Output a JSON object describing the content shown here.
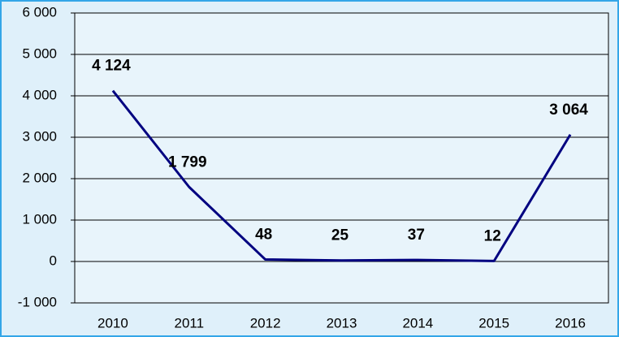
{
  "chart_data": {
    "type": "line",
    "categories": [
      "2010",
      "2011",
      "2012",
      "2013",
      "2014",
      "2015",
      "2016"
    ],
    "values": [
      4124,
      1799,
      48,
      25,
      37,
      12,
      3064
    ],
    "value_labels": [
      "4 124",
      "1 799",
      "48",
      "25",
      "37",
      "12",
      "3 064"
    ],
    "color": "#000080",
    "ylim": [
      -1000,
      6000
    ],
    "yticks": [
      {
        "value": -1000,
        "label": "-1 000"
      },
      0,
      {
        "value": 1000,
        "label": "1 000"
      },
      {
        "value": 2000,
        "label": "2 000"
      },
      {
        "value": 3000,
        "label": "3 000"
      },
      {
        "value": 4000,
        "label": "4 000"
      },
      {
        "value": 5000,
        "label": "5 000"
      },
      {
        "value": 6000,
        "label": "6 000"
      }
    ],
    "negative_tick_color": "#ff0000",
    "grid": true
  }
}
